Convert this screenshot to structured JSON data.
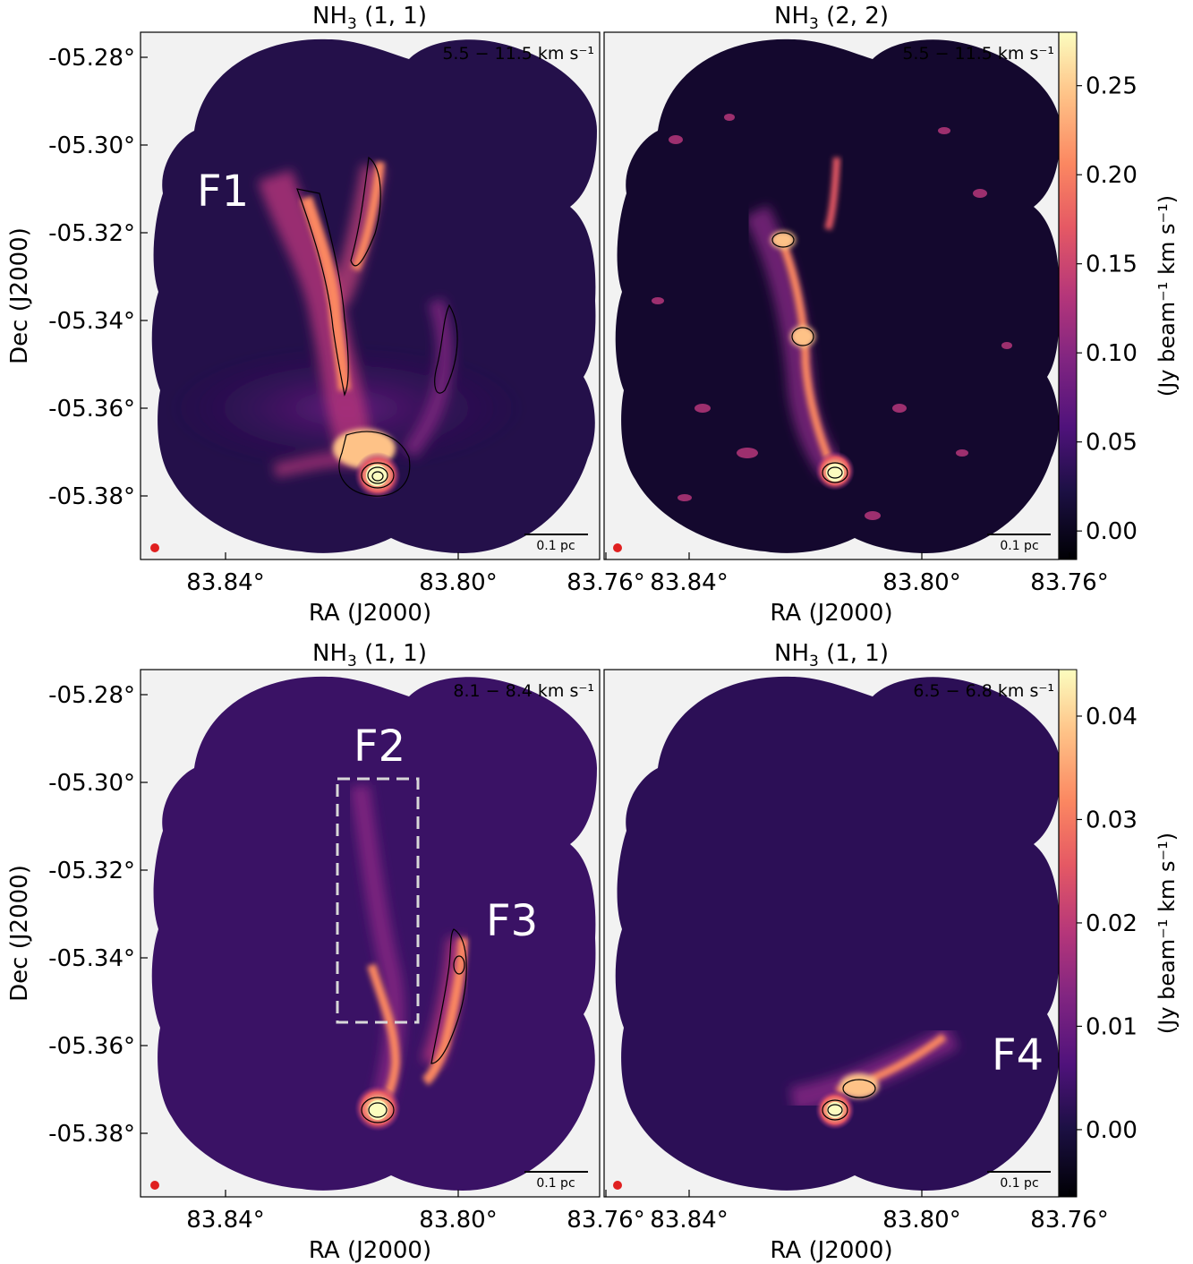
{
  "panels": [
    {
      "title_base": "NH",
      "title_sub": "3",
      "title_rest": " (1, 1)",
      "velocity_label": "5.5 − 11.5 km s⁻¹",
      "scalebar_label": "0.1 pc",
      "filament_labels": [
        {
          "text": "F1"
        }
      ],
      "xlabel": "RA (J2000)",
      "ylabel": "Dec (J2000)",
      "xticks": [
        "83.84°",
        "83.80°",
        "83.76°"
      ],
      "yticks": [
        "-05.28°",
        "-05.30°",
        "-05.32°",
        "-05.34°",
        "-05.36°",
        "-05.38°"
      ]
    },
    {
      "title_base": "NH",
      "title_sub": "3",
      "title_rest": " (2, 2)",
      "velocity_label": "5.5 − 11.5 km s⁻¹",
      "scalebar_label": "0.1 pc",
      "filament_labels": [],
      "xlabel": "RA (J2000)",
      "ylabel": "",
      "xticks": [
        "83.84°",
        "83.80°",
        "83.76°"
      ],
      "yticks": []
    },
    {
      "title_base": "NH",
      "title_sub": "3",
      "title_rest": " (1, 1)",
      "velocity_label": "8.1 − 8.4 km s⁻¹",
      "scalebar_label": "0.1 pc",
      "filament_labels": [
        {
          "text": "F2"
        },
        {
          "text": "F3"
        }
      ],
      "xlabel": "RA (J2000)",
      "ylabel": "Dec (J2000)",
      "xticks": [
        "83.84°",
        "83.80°",
        "83.76°"
      ],
      "yticks": [
        "-05.28°",
        "-05.30°",
        "-05.32°",
        "-05.34°",
        "-05.36°",
        "-05.38°"
      ]
    },
    {
      "title_base": "NH",
      "title_sub": "3",
      "title_rest": " (1, 1)",
      "velocity_label": "6.5 − 6.8 km s⁻¹",
      "scalebar_label": "0.1 pc",
      "filament_labels": [
        {
          "text": "F4"
        }
      ],
      "xlabel": "RA (J2000)",
      "ylabel": "",
      "xticks": [
        "83.84°",
        "83.80°",
        "83.76°"
      ],
      "yticks": []
    }
  ],
  "colorbars": [
    {
      "label": "(Jy beam⁻¹ km s⁻¹)",
      "ticks": [
        "0.00",
        "0.05",
        "0.10",
        "0.15",
        "0.20",
        "0.25"
      ],
      "tick_values": [
        0.0,
        0.05,
        0.1,
        0.15,
        0.2,
        0.25
      ],
      "range": [
        -0.016,
        0.28
      ]
    },
    {
      "label": "(Jy beam⁻¹ km s⁻¹)",
      "ticks": [
        "0.00",
        "0.01",
        "0.02",
        "0.03",
        "0.04"
      ],
      "tick_values": [
        0.0,
        0.01,
        0.02,
        0.03,
        0.04
      ],
      "range": [
        -0.0065,
        0.0445
      ]
    }
  ],
  "colors": {
    "map_outside": "#f2f2f2",
    "colormap": "magma",
    "beam": "#e02020",
    "region_box": "#d8d8d8"
  }
}
